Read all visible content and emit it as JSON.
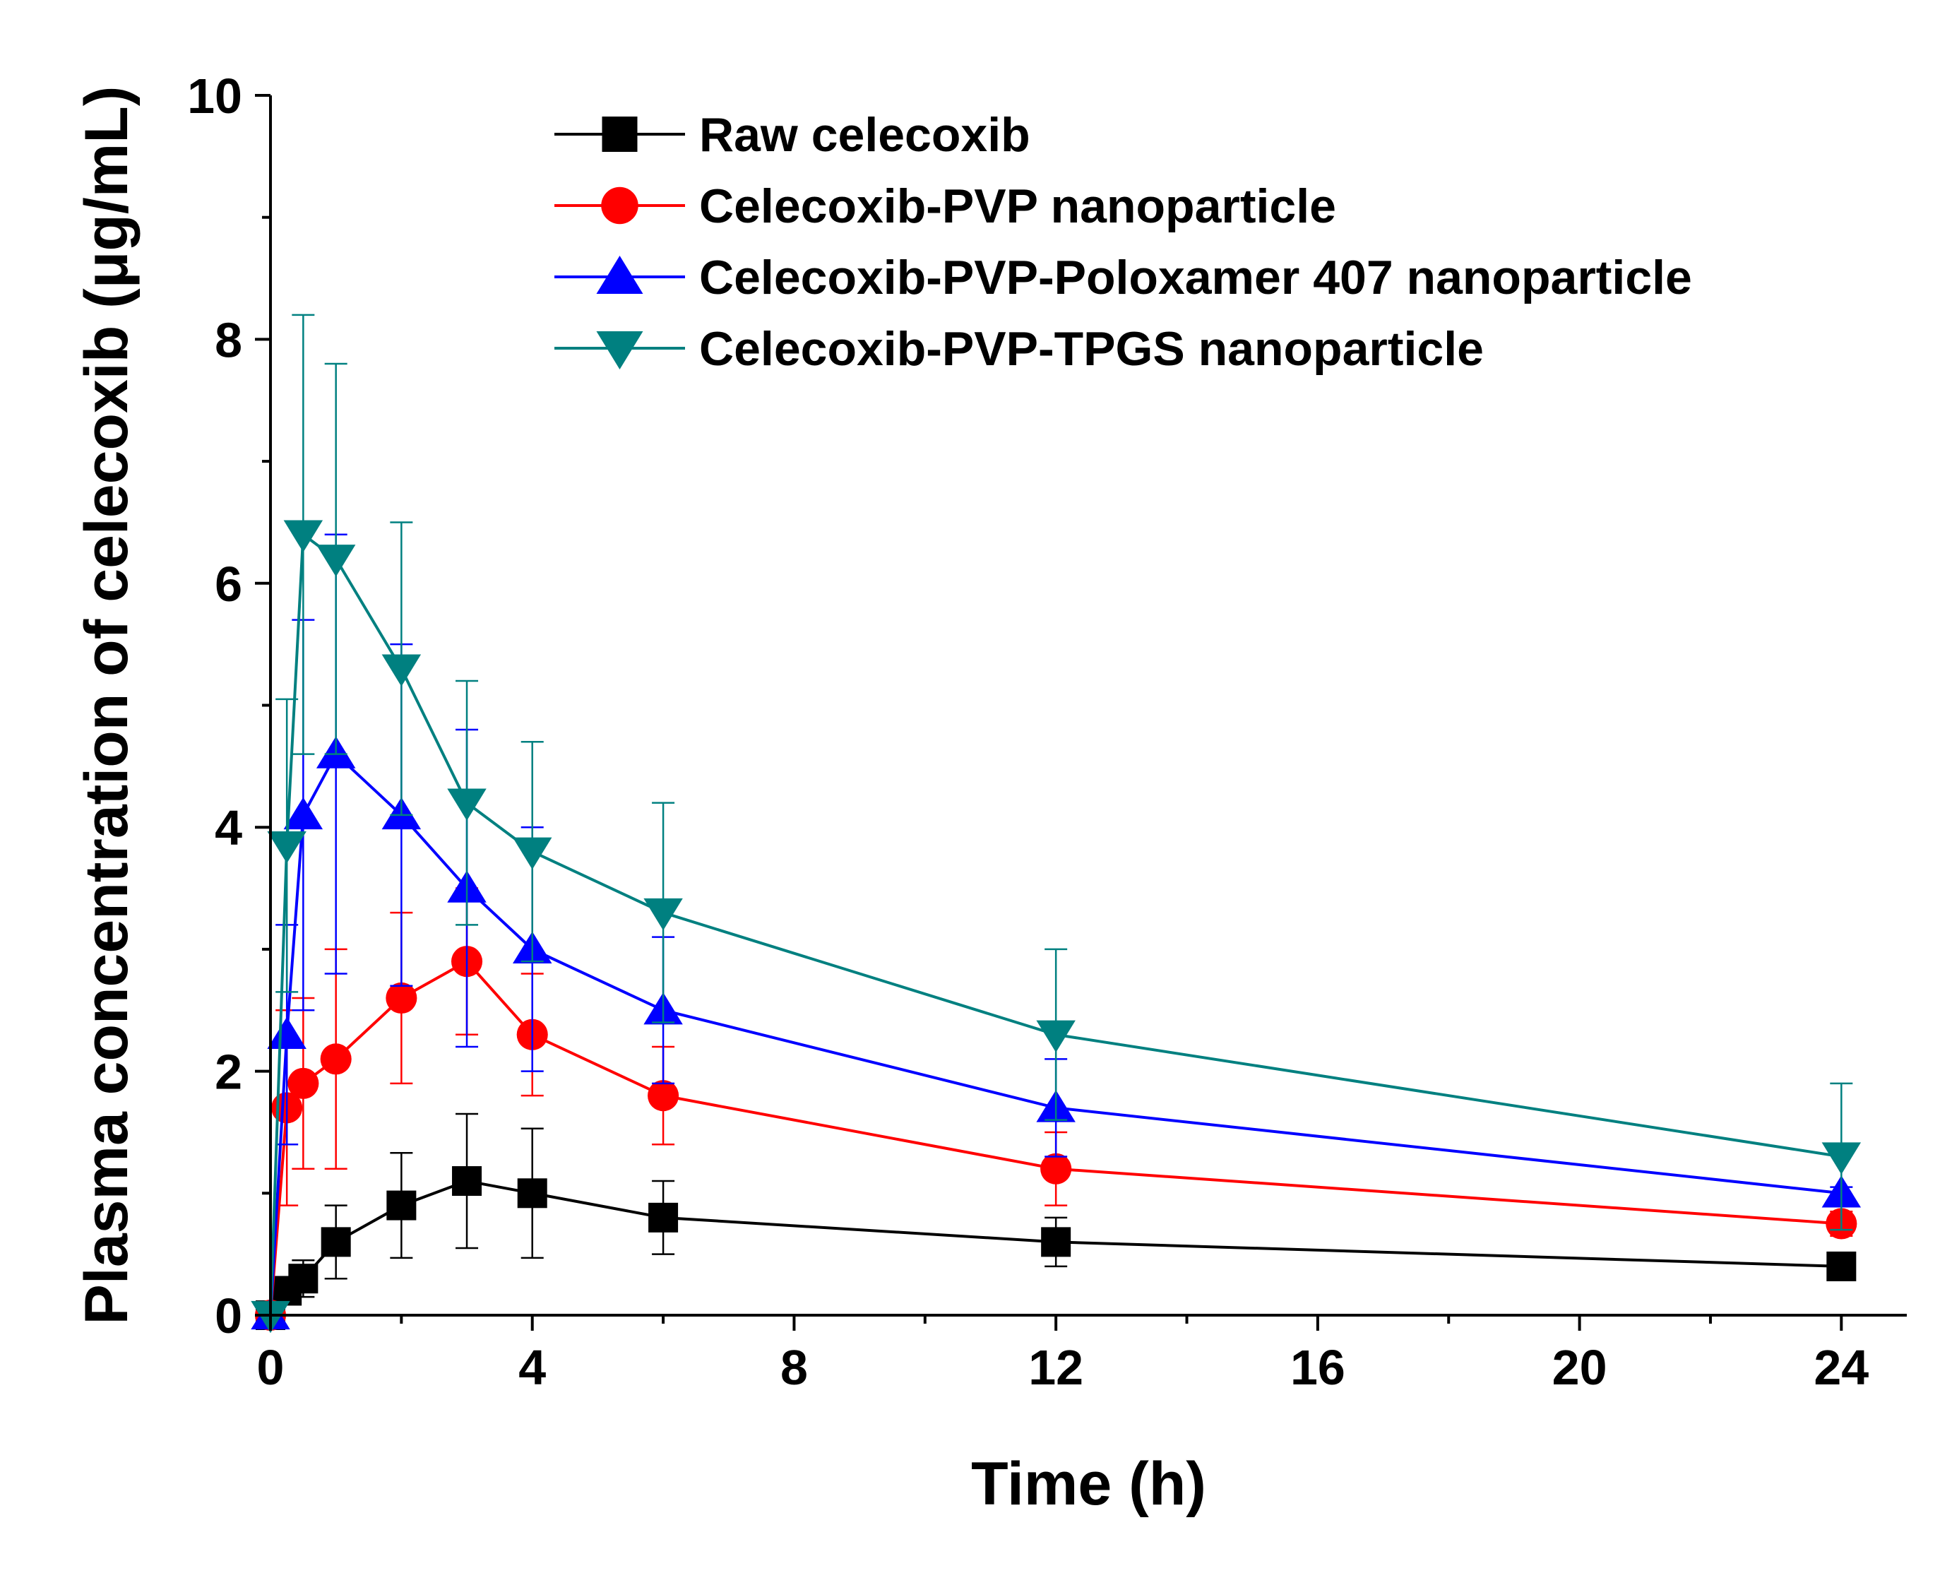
{
  "chart_data": {
    "type": "line",
    "title": "",
    "xlabel": "Time (h)",
    "ylabel": "Plasma concentration of celecoxib (μg/mL)",
    "xlim": [
      0,
      25
    ],
    "ylim": [
      0,
      10
    ],
    "xticks": [
      0,
      4,
      8,
      12,
      16,
      20,
      24
    ],
    "xtick_labels": [
      "0",
      "4",
      "8",
      "12",
      "16",
      "20",
      "24"
    ],
    "yticks": [
      0,
      2,
      4,
      6,
      8,
      10
    ],
    "ytick_labels": [
      "0",
      "2",
      "4",
      "6",
      "8",
      "10"
    ],
    "legend_position": "top-right",
    "x": [
      0,
      0.25,
      0.5,
      1,
      2,
      3,
      4,
      6,
      12,
      24
    ],
    "series": [
      {
        "name": "Raw celecoxib",
        "color": "#000000",
        "marker": "square",
        "values": [
          0,
          0.2,
          0.3,
          0.6,
          0.9,
          1.1,
          1.0,
          0.8,
          0.6,
          0.4
        ],
        "errors": [
          0,
          0.1,
          0.15,
          0.3,
          0.43,
          0.55,
          0.53,
          0.3,
          0.2,
          0.05
        ]
      },
      {
        "name": "Celecoxib-PVP nanoparticle",
        "color": "#ff0000",
        "marker": "circle",
        "values": [
          0,
          1.7,
          1.9,
          2.1,
          2.6,
          2.9,
          2.3,
          1.8,
          1.2,
          0.75
        ],
        "errors": [
          0,
          0.8,
          0.7,
          0.9,
          0.7,
          0.6,
          0.5,
          0.4,
          0.3,
          0.1
        ]
      },
      {
        "name": "Celecoxib-PVP-Poloxamer 407 nanoparticle",
        "color": "#0000ff",
        "marker": "triangle-up",
        "values": [
          0,
          2.3,
          4.1,
          4.6,
          4.1,
          3.5,
          3.0,
          2.5,
          1.7,
          1.0
        ],
        "errors": [
          0,
          0.9,
          1.6,
          1.8,
          1.4,
          1.3,
          1.0,
          0.6,
          0.4,
          0.05
        ]
      },
      {
        "name": "Celecoxib-PVP-TPGS nanoparticle",
        "color": "#008080",
        "marker": "triangle-down",
        "values": [
          0,
          3.85,
          6.4,
          6.2,
          5.3,
          4.2,
          3.8,
          3.3,
          2.3,
          1.3
        ],
        "errors": [
          0,
          1.2,
          1.8,
          1.6,
          1.2,
          1.0,
          0.9,
          0.9,
          0.7,
          0.6
        ]
      }
    ]
  }
}
